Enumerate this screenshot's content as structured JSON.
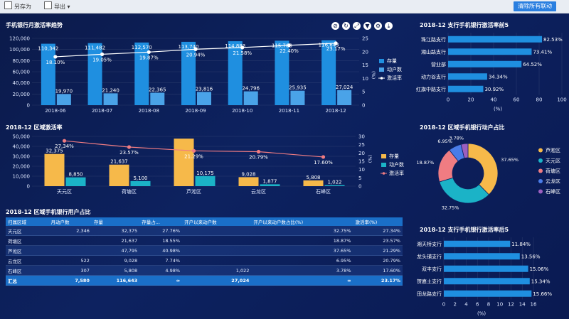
{
  "toolbar": {
    "save_label": "另存为",
    "export_label": "导出",
    "clear_label": "清除所有联动"
  },
  "colors": {
    "bar_blue": "#1f8fe0",
    "bar_light": "#4aa3e8",
    "bar_orange": "#f6b94a",
    "bar_teal": "#1bb3c7",
    "line_white": "#ffffff",
    "line_red": "#f07c82",
    "pie": [
      "#f6b94a",
      "#1bb3c7",
      "#f07c82",
      "#4a7ce8",
      "#9b5fc0"
    ]
  },
  "chart_data": [
    {
      "id": "trend",
      "type": "bar",
      "title": "手机银行月激活率趋势",
      "categories": [
        "2018-06",
        "2018-07",
        "2018-08",
        "2018-09",
        "2018-10",
        "2018-11",
        "2018-12"
      ],
      "series": [
        {
          "name": "存量",
          "values": [
            110342,
            111482,
            112570,
            113740,
            114883,
            115788,
            116643
          ],
          "labels": [
            "110,342",
            "111,482",
            "112,570",
            "113,740",
            "114,883",
            "115,788",
            "116,643"
          ]
        },
        {
          "name": "动户数",
          "values": [
            19970,
            21240,
            22365,
            23816,
            24796,
            25935,
            27024
          ],
          "labels": [
            "19,970",
            "21,240",
            "22,365",
            "23,816",
            "24,796",
            "25,935",
            "27,024"
          ]
        },
        {
          "name": "激活率",
          "values": [
            18.1,
            19.05,
            19.87,
            20.94,
            21.58,
            22.4,
            23.17
          ],
          "labels": [
            "18.10%",
            "19.05%",
            "19.87%",
            "20.94%",
            "21.58%",
            "22.40%",
            "23.17%"
          ]
        }
      ],
      "yticks": [
        "0",
        "20,000",
        "40,000",
        "60,000",
        "80,000",
        "100,000",
        "120,000"
      ],
      "ylim": [
        0,
        120000
      ],
      "y2ticks": [
        "0",
        "5",
        "10",
        "15",
        "20",
        "25"
      ],
      "y2lim": [
        0,
        25
      ],
      "y2label": "(%)"
    },
    {
      "id": "top5",
      "type": "bar",
      "title": "2018-12 支行手机银行激活率前5",
      "categories": [
        "珠江路支行",
        "湘山路支行",
        "营业部",
        "动力谷支行",
        "红旗中路支行"
      ],
      "values": [
        82.53,
        73.41,
        64.52,
        34.34,
        30.92
      ],
      "labels": [
        "82.53%",
        "73.41%",
        "64.52%",
        "34.34%",
        "30.92%"
      ],
      "xticks": [
        "0",
        "20",
        "40",
        "60",
        "80",
        "100"
      ],
      "xlim": [
        0,
        100
      ],
      "xlabel": "(%)"
    },
    {
      "id": "region",
      "type": "bar",
      "title": "2018-12 区域激活率",
      "categories": [
        "天元区",
        "荷塘区",
        "芦淞区",
        "云龙区",
        "石峰区"
      ],
      "series": [
        {
          "name": "存量",
          "values": [
            32375,
            21637,
            47795,
            9028,
            5808
          ],
          "labels": [
            "32,375",
            "21,637",
            "",
            "9,028",
            "5,808"
          ]
        },
        {
          "name": "动户数",
          "values": [
            8850,
            5100,
            10175,
            1877,
            1022
          ],
          "labels": [
            "8,850",
            "5,100",
            "10,175",
            "1,877",
            "1,022"
          ]
        },
        {
          "name": "激活率",
          "values": [
            27.34,
            23.57,
            21.29,
            20.79,
            17.6
          ],
          "labels": [
            "27.34%",
            "23.57%",
            "21.29%",
            "20.79%",
            "17.60%"
          ]
        }
      ],
      "yticks": [
        "0",
        "10,000",
        "20,000",
        "30,000",
        "40,000",
        "50,000"
      ],
      "ylim": [
        0,
        50000
      ],
      "y2ticks": [
        "0",
        "5",
        "10",
        "15",
        "20",
        "25",
        "30"
      ],
      "y2lim": [
        0,
        30
      ],
      "y2label": "(%)"
    },
    {
      "id": "pie",
      "type": "pie",
      "title": "2018-12 区域手机银行动户占比",
      "categories": [
        "芦淞区",
        "天元区",
        "荷塘区",
        "云龙区",
        "石峰区"
      ],
      "values": [
        37.65,
        32.75,
        18.87,
        6.95,
        3.78
      ],
      "labels": [
        "37.65%",
        "32.75%",
        "18.87%",
        "6.95%",
        "3.78%"
      ]
    },
    {
      "id": "bottom5",
      "type": "bar",
      "title": "2018-12 支行手机银行激活率后5",
      "categories": [
        "湘天桥支行",
        "龙头铺支行",
        "双丰支行",
        "贺嘉土支行",
        "田龙路支行"
      ],
      "values": [
        11.84,
        13.56,
        15.06,
        15.34,
        15.66
      ],
      "labels": [
        "11.84%",
        "13.56%",
        "15.06%",
        "15.34%",
        "15.66%"
      ],
      "xticks": [
        "0",
        "2",
        "4",
        "6",
        "8",
        "10",
        "12",
        "14",
        "16"
      ],
      "xlim": [
        0,
        16
      ],
      "xlabel": "(%)"
    }
  ],
  "table": {
    "title": "2018-12 区域手机银行用户占比",
    "headers": [
      "归属区域",
      "月动户数",
      "存量",
      "存量占...",
      "开户以来动户数",
      "开户以来动户数占比(%)",
      "激活率(%)"
    ],
    "rows": [
      [
        "天元区",
        "2,346",
        "32,375",
        "27.76%",
        "",
        "32.75%",
        "27.34%"
      ],
      [
        "荷塘区",
        "",
        "21,637",
        "18.55%",
        "",
        "18.87%",
        "23.57%"
      ],
      [
        "芦淞区",
        "",
        "47,795",
        "40.98%",
        "",
        "37.65%",
        "21.29%"
      ],
      [
        "云龙区",
        "522",
        "9,028",
        "7.74%",
        "",
        "6.95%",
        "20.79%"
      ],
      [
        "石峰区",
        "307",
        "5,808",
        "4.98%",
        "1,022",
        "3.78%",
        "17.60%"
      ]
    ],
    "total": [
      "汇总",
      "7,580",
      "116,643",
      "∞",
      "27,024",
      "∞",
      "23.17%"
    ]
  }
}
